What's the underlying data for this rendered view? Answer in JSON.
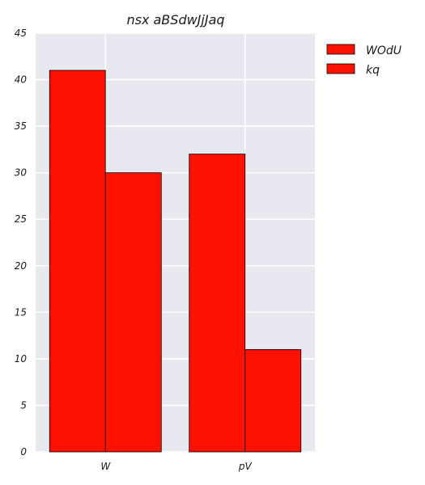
{
  "chart_data": {
    "type": "bar",
    "title": "nsx aBSdwJjJaq",
    "xlabel": "",
    "ylabel": "",
    "categories": [
      "W",
      "pV"
    ],
    "series": [
      {
        "name": "WOdU",
        "values": [
          41,
          32
        ],
        "color": "#ff1100"
      },
      {
        "name": "kq",
        "values": [
          30,
          11
        ],
        "color": "#ff1100"
      }
    ],
    "ylim": [
      0,
      45
    ],
    "yticks": [
      0,
      5,
      10,
      15,
      20,
      25,
      30,
      35,
      40,
      45
    ],
    "grid": true,
    "legend_position": "outside-top-right",
    "background_color": "#e8e8f0",
    "grid_color": "#ffffff",
    "edge_color": "#000000"
  }
}
